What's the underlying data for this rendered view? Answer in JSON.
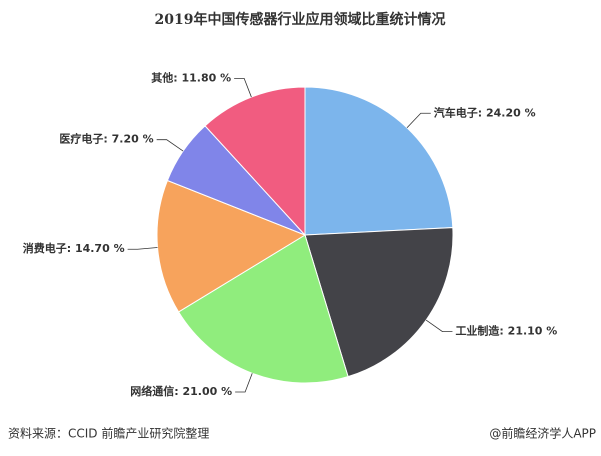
{
  "chart_data": {
    "type": "pie",
    "title": "2019年中国传感器行业应用领域比重统计情况",
    "values": [
      24.2,
      21.1,
      21.0,
      14.7,
      7.2,
      11.8
    ],
    "value_labels": [
      "汽车电子: 24.20 %",
      "工业制造: 21.10 %",
      "网络通信: 21.00 %",
      "消费电子: 14.70 %",
      "医疗电子: 7.20 %",
      "其他: 11.80 %"
    ],
    "colors": [
      "#7cb5ec",
      "#434348",
      "#90ed7d",
      "#f7a35c",
      "#8085e9",
      "#f15c80"
    ],
    "source": "资料来源：CCID 前瞻产业研究院整理",
    "credit": "@前瞻经济学人APP"
  }
}
